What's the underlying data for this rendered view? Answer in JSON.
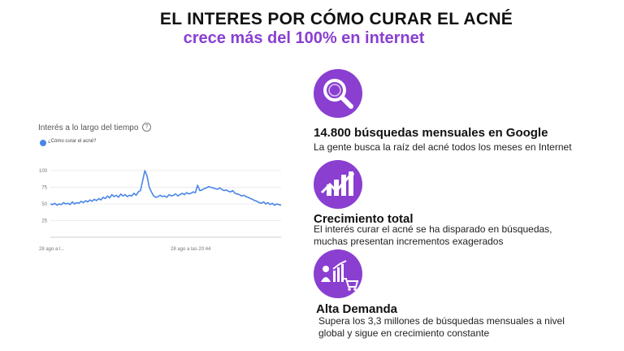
{
  "headline": {
    "line1": "EL INTERES POR CÓMO CURAR EL ACNÉ",
    "line2": "crece más del 100% en internet"
  },
  "trend_panel": {
    "title": "Interés a lo largo del tiempo",
    "help_glyph": "?",
    "legend_label": "¿Cómo curar el acné?"
  },
  "chart_data": {
    "type": "line",
    "title": "Interés a lo largo del tiempo",
    "series": [
      {
        "name": "¿Cómo curar el acné?",
        "color": "#4a86e8",
        "values": [
          50,
          49,
          51,
          48,
          50,
          49,
          52,
          50,
          51,
          49,
          53,
          50,
          52,
          51,
          54,
          52,
          55,
          53,
          56,
          54,
          57,
          55,
          58,
          56,
          60,
          58,
          62,
          59,
          64,
          61,
          63,
          60,
          65,
          62,
          64,
          61,
          63,
          62,
          66,
          63,
          68,
          70,
          85,
          100,
          92,
          75,
          68,
          62,
          60,
          61,
          63,
          61,
          62,
          60,
          64,
          62,
          63,
          65,
          62,
          64,
          66,
          64,
          67,
          65,
          66,
          68,
          67,
          78,
          70,
          71,
          73,
          74,
          76,
          75,
          74,
          73,
          72,
          74,
          72,
          70,
          71,
          69,
          68,
          70,
          66,
          65,
          64,
          62,
          63,
          61,
          60,
          58,
          57,
          55,
          54,
          52,
          51,
          53,
          50,
          52,
          49,
          51,
          48,
          50,
          49,
          48
        ]
      }
    ],
    "y_ticks": [
      100,
      75,
      50,
      25
    ],
    "ylim": [
      0,
      100
    ],
    "x_tick_labels": [
      "28 ago a l...",
      "28 ago a las 20:44"
    ],
    "grid": true,
    "legend": "top-left"
  },
  "features": [
    {
      "icon": "search-magnifier-icon",
      "heading": "14.800 búsquedas mensuales en Google",
      "lines": [
        "La gente busca la raíz del acné todos los meses en Internet"
      ]
    },
    {
      "icon": "growth-chart-arrow-icon",
      "heading": "Crecimiento total",
      "lines": [
        "El interés curar el acné se ha disparado en búsquedas,",
        "muchas presentan incrementos  exagerados"
      ]
    },
    {
      "icon": "shopping-demand-icon",
      "heading": "Alta Demanda",
      "lines": [
        "Supera los 3,3 millones de búsquedas mensuales a nivel",
        "global y sigue en crecimiento constante"
      ]
    }
  ],
  "colors": {
    "accent": "#8a3fd1",
    "series": "#4a86e8"
  }
}
